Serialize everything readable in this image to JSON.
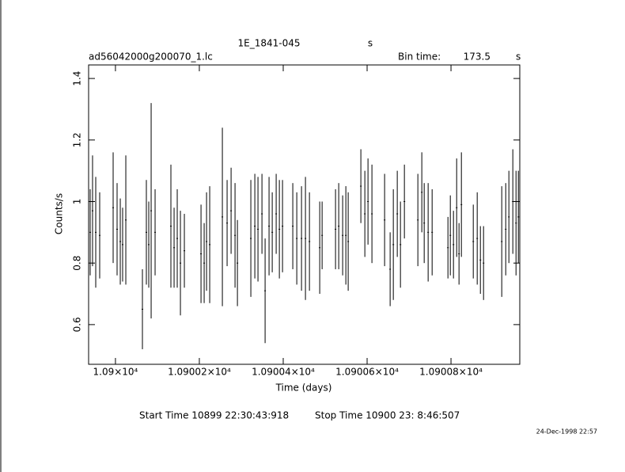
{
  "chart_data": {
    "type": "scatter",
    "title": "1E_1841-045",
    "title_unit": "s",
    "subtitle": "ad56042000g200070_1.lc",
    "bin_time_label": "Bin time:",
    "bin_time": 173.5,
    "bin_time_unit": "s",
    "xlabel": "Time (days)",
    "ylabel": "Counts/s",
    "start_time": "Start Time 10899 22:30:43:918",
    "stop_time": "Stop Time 10900 23: 8:46:507",
    "date_stamp": "24-Dec-1998 22:57",
    "color": "#000000",
    "xlim": [
      10899.936,
      10900.964
    ],
    "ylim": [
      0.471,
      1.444
    ],
    "xticks": [
      {
        "value": 10900,
        "label": "1.09×10⁴"
      },
      {
        "value": 10900.2,
        "label": "1.09002×10⁴"
      },
      {
        "value": 10900.4,
        "label": "1.09004×10⁴"
      },
      {
        "value": 10900.6,
        "label": "1.09006×10⁴"
      },
      {
        "value": 10900.8,
        "label": "1.09008×10⁴"
      }
    ],
    "yticks": [
      0.6,
      0.8,
      1,
      1.2,
      1.4
    ],
    "x": [
      10899.9398,
      10899.9454,
      10899.953,
      10899.9624,
      10899.9945,
      10900.0039,
      10900.0115,
      10900.0171,
      10900.0247,
      10900.0643,
      10900.0737,
      10900.0794,
      10900.0851,
      10900.0945,
      10900.1322,
      10900.1398,
      10900.1473,
      10900.1549,
      10900.1643,
      10900.204,
      10900.2115,
      10900.2172,
      10900.2247,
      10900.2549,
      10900.2662,
      10900.2757,
      10900.2851,
      10900.2908,
      10900.3228,
      10900.3323,
      10900.3398,
      10900.3493,
      10900.3568,
      10900.3662,
      10900.3738,
      10900.3832,
      10900.3908,
      10900.3983,
      10900.4228,
      10900.4323,
      10900.4436,
      10900.453,
      10900.4625,
      10900.487,
      10900.4927,
      10900.5247,
      10900.5323,
      10900.5417,
      10900.5493,
      10900.5549,
      10900.5851,
      10900.5946,
      10900.6021,
      10900.6115,
      10900.6417,
      10900.6549,
      10900.6625,
      10900.6719,
      10900.6795,
      10900.6889,
      10900.721,
      10900.7304,
      10900.7361,
      10900.7455,
      10900.755,
      10900.7927,
      10900.7984,
      10900.8059,
      10900.8135,
      10900.8191,
      10900.8248,
      10900.8531,
      10900.8625,
      10900.8701,
      10900.8776,
      10900.921,
      10900.9305,
      10900.938,
      10900.9474,
      10900.955,
      10900.9606
    ],
    "values": [
      0.9,
      0.97,
      0.9,
      0.89,
      0.98,
      0.91,
      0.87,
      0.86,
      0.94,
      0.65,
      0.9,
      0.86,
      0.97,
      0.9,
      0.92,
      0.85,
      0.88,
      0.8,
      0.84,
      0.83,
      0.8,
      0.87,
      0.86,
      0.95,
      0.93,
      0.97,
      0.89,
      0.8,
      0.88,
      0.92,
      0.91,
      0.96,
      0.71,
      0.92,
      0.9,
      0.96,
      0.91,
      0.92,
      0.92,
      0.88,
      0.88,
      0.88,
      0.87,
      0.85,
      0.89,
      0.91,
      0.92,
      0.89,
      0.89,
      0.87,
      1.05,
      0.96,
      1.0,
      0.96,
      0.94,
      0.78,
      0.86,
      0.96,
      0.86,
      1.0,
      0.94,
      1.03,
      0.93,
      0.9,
      0.9,
      0.85,
      0.89,
      0.86,
      0.98,
      0.83,
      0.99,
      0.87,
      0.88,
      0.81,
      0.8,
      0.87,
      0.91,
      0.95,
      1.0,
      0.93,
      0.95
    ],
    "errors": [
      0.14,
      0.18,
      0.18,
      0.14,
      0.18,
      0.15,
      0.14,
      0.12,
      0.21,
      0.13,
      0.17,
      0.14,
      0.35,
      0.14,
      0.2,
      0.13,
      0.16,
      0.17,
      0.12,
      0.16,
      0.13,
      0.16,
      0.19,
      0.29,
      0.14,
      0.14,
      0.17,
      0.14,
      0.19,
      0.17,
      0.17,
      0.13,
      0.17,
      0.16,
      0.13,
      0.13,
      0.16,
      0.15,
      0.14,
      0.15,
      0.17,
      0.2,
      0.16,
      0.15,
      0.11,
      0.13,
      0.14,
      0.13,
      0.16,
      0.16,
      0.12,
      0.14,
      0.14,
      0.16,
      0.15,
      0.12,
      0.18,
      0.14,
      0.14,
      0.12,
      0.15,
      0.13,
      0.13,
      0.16,
      0.14,
      0.1,
      0.13,
      0.11,
      0.16,
      0.1,
      0.17,
      0.12,
      0.15,
      0.11,
      0.12,
      0.18,
      0.15,
      0.15,
      0.17,
      0.17,
      0.15
    ]
  }
}
